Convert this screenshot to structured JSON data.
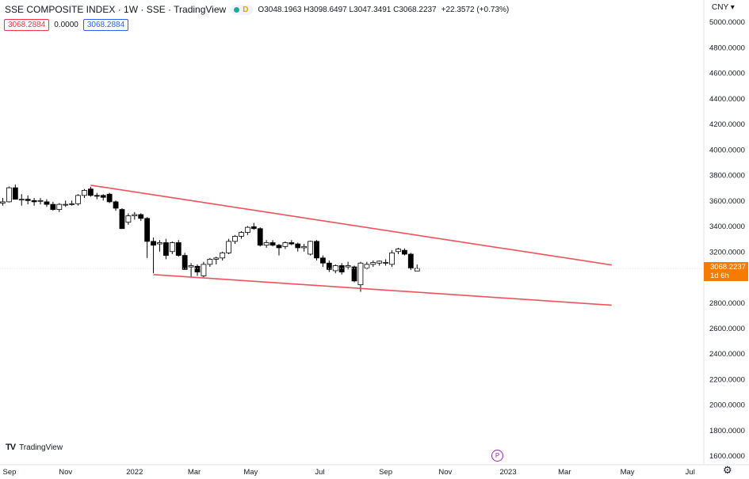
{
  "header": {
    "title": "SSE COMPOSITE INDEX · 1W · SSE · TradingView",
    "badge": "D",
    "ohlc": "O3048.1963 H3098.6497 L3047.3491 C3068.2237",
    "change": "+22.3572 (+0.73%)"
  },
  "indicators": {
    "value_a": "3068.2884",
    "value_b": "0.0000",
    "value_c": "3068.2884"
  },
  "currency_label": "CNY ▾",
  "price_label": {
    "price": "3068.2237",
    "countdown": "1d 6h"
  },
  "logo_text": "TradingView",
  "tl_icon": "P",
  "colors": {
    "up": "#ffffff",
    "down": "#000000",
    "trendline": "#f0525a",
    "price_tag": "#f57c00"
  },
  "chart_data": {
    "type": "candlestick",
    "title": "SSE COMPOSITE INDEX",
    "interval": "1W",
    "currency": "CNY",
    "y_ticks": [
      "5000.0000",
      "4800.0000",
      "4600.0000",
      "4400.0000",
      "4200.0000",
      "4000.0000",
      "3800.0000",
      "3600.0000",
      "3400.0000",
      "3200.0000",
      "3000.0000",
      "2800.0000",
      "2600.0000",
      "2400.0000",
      "2200.0000",
      "2000.0000",
      "1800.0000",
      "1600.0000"
    ],
    "x_ticks": [
      "Sep",
      "Nov",
      "2022",
      "Mar",
      "May",
      "Jul",
      "Sep",
      "Nov",
      "2023",
      "Mar",
      "May",
      "Jul"
    ],
    "ylim": [
      1530,
      5140
    ],
    "grid": false,
    "candles": [
      [
        0,
        3580,
        3620,
        3560,
        3590
      ],
      [
        1,
        3590,
        3710,
        3585,
        3700
      ],
      [
        2,
        3700,
        3725,
        3610,
        3610
      ],
      [
        3,
        3610,
        3650,
        3560,
        3610
      ],
      [
        4,
        3610,
        3640,
        3570,
        3600
      ],
      [
        5,
        3600,
        3620,
        3560,
        3590
      ],
      [
        6,
        3595,
        3620,
        3570,
        3600
      ],
      [
        7,
        3590,
        3610,
        3550,
        3570
      ],
      [
        8,
        3570,
        3590,
        3520,
        3530
      ],
      [
        9,
        3530,
        3580,
        3510,
        3570
      ],
      [
        10,
        3570,
        3600,
        3550,
        3570
      ],
      [
        11,
        3570,
        3600,
        3560,
        3575
      ],
      [
        12,
        3575,
        3650,
        3560,
        3640
      ],
      [
        13,
        3640,
        3690,
        3620,
        3680
      ],
      [
        14,
        3690,
        3708,
        3630,
        3640
      ],
      [
        15,
        3640,
        3660,
        3610,
        3635
      ],
      [
        16,
        3640,
        3650,
        3600,
        3625
      ],
      [
        17,
        3650,
        3660,
        3580,
        3590
      ],
      [
        18,
        3590,
        3600,
        3520,
        3540
      ],
      [
        19,
        3530,
        3540,
        3380,
        3380
      ],
      [
        20,
        3430,
        3500,
        3410,
        3480
      ],
      [
        21,
        3480,
        3510,
        3450,
        3490
      ],
      [
        22,
        3490,
        3500,
        3440,
        3460
      ],
      [
        23,
        3460,
        3470,
        3150,
        3280
      ],
      [
        24,
        3280,
        3310,
        3030,
        3250
      ],
      [
        25,
        3260,
        3290,
        3200,
        3270
      ],
      [
        26,
        3270,
        3300,
        3140,
        3170
      ],
      [
        27,
        3200,
        3280,
        3180,
        3270
      ],
      [
        28,
        3270,
        3290,
        3160,
        3170
      ],
      [
        29,
        3170,
        3190,
        3060,
        3060
      ],
      [
        30,
        3080,
        3110,
        3000,
        3090
      ],
      [
        31,
        3085,
        3100,
        3010,
        3040
      ],
      [
        32,
        3010,
        3120,
        3000,
        3100
      ],
      [
        33,
        3100,
        3150,
        3080,
        3140
      ],
      [
        34,
        3140,
        3160,
        3100,
        3150
      ],
      [
        35,
        3150,
        3200,
        3130,
        3190
      ],
      [
        36,
        3190,
        3300,
        3180,
        3280
      ],
      [
        37,
        3280,
        3330,
        3260,
        3320
      ],
      [
        38,
        3320,
        3360,
        3300,
        3350
      ],
      [
        39,
        3350,
        3400,
        3330,
        3390
      ],
      [
        40,
        3395,
        3425,
        3370,
        3380
      ],
      [
        41,
        3380,
        3390,
        3240,
        3250
      ],
      [
        42,
        3250,
        3290,
        3230,
        3270
      ],
      [
        43,
        3270,
        3290,
        3240,
        3250
      ],
      [
        44,
        3250,
        3260,
        3170,
        3230
      ],
      [
        45,
        3240,
        3280,
        3220,
        3270
      ],
      [
        46,
        3270,
        3290,
        3250,
        3260
      ],
      [
        47,
        3260,
        3270,
        3200,
        3230
      ],
      [
        48,
        3230,
        3260,
        3200,
        3240
      ],
      [
        49,
        3180,
        3285,
        3170,
        3280
      ],
      [
        50,
        3280,
        3290,
        3130,
        3150
      ],
      [
        51,
        3150,
        3170,
        3080,
        3110
      ],
      [
        52,
        3110,
        3130,
        3040,
        3060
      ],
      [
        53,
        3050,
        3100,
        3030,
        3090
      ],
      [
        54,
        3090,
        3110,
        3020,
        3040
      ],
      [
        55,
        3080,
        3120,
        3060,
        3090
      ],
      [
        56,
        3080,
        3090,
        2960,
        2970
      ],
      [
        57,
        2940,
        3120,
        2885,
        3110
      ],
      [
        58,
        3070,
        3120,
        3060,
        3100
      ],
      [
        59,
        3100,
        3130,
        3080,
        3115
      ],
      [
        60,
        3110,
        3130,
        3090,
        3125
      ],
      [
        61,
        3110,
        3140,
        3090,
        3115
      ],
      [
        62,
        3100,
        3210,
        3080,
        3190
      ],
      [
        63,
        3200,
        3230,
        3180,
        3220
      ],
      [
        64,
        3210,
        3225,
        3170,
        3180
      ],
      [
        65,
        3180,
        3190,
        3055,
        3070
      ],
      [
        66,
        3048.1963,
        3098.6497,
        3047.3491,
        3068.2237
      ]
    ],
    "trendlines": [
      {
        "from": [
          14,
          3720
        ],
        "to": [
          97,
          3095
        ]
      },
      {
        "from": [
          24,
          3020
        ],
        "to": [
          97,
          2780
        ]
      }
    ],
    "last_price": 3068.2237
  }
}
